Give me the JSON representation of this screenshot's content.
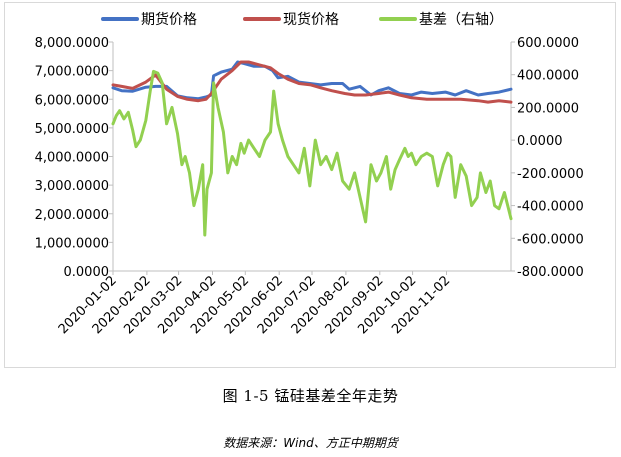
{
  "caption": "图 1-5 锰硅基差全年走势",
  "source": "数据来源：Wind、方正中期期货",
  "chart_data": {
    "type": "line",
    "x_ticks": [
      "2020-01-02",
      "2020-02-02",
      "2020-03-02",
      "2020-04-02",
      "2020-05-02",
      "2020-06-02",
      "2020-07-02",
      "2020-08-02",
      "2020-09-02",
      "2020-10-02",
      "2020-11-02"
    ],
    "x_range": [
      "2020-01-02",
      "2020-12-31"
    ],
    "y_left": {
      "ylim": [
        0,
        8000
      ],
      "ticks": [
        "0.0000",
        "1,000.0000",
        "2,000.0000",
        "3,000.0000",
        "4,000.0000",
        "5,000.0000",
        "6,000.0000",
        "7,000.0000",
        "8,000.0000"
      ]
    },
    "y_right": {
      "ylim": [
        -800,
        600
      ],
      "ticks": [
        "-800.0000",
        "-600.0000",
        "-400.0000",
        "-200.0000",
        "0.0000",
        "200.0000",
        "400.0000",
        "600.0000"
      ]
    },
    "legend_position": "top",
    "grid": false,
    "series": [
      {
        "name": "期货价格",
        "axis": "left",
        "color": "#4472c4",
        "points": [
          [
            "2020-01-02",
            6400
          ],
          [
            "2020-01-10",
            6300
          ],
          [
            "2020-01-20",
            6280
          ],
          [
            "2020-02-01",
            6420
          ],
          [
            "2020-02-10",
            6450
          ],
          [
            "2020-02-20",
            6450
          ],
          [
            "2020-03-01",
            6120
          ],
          [
            "2020-03-10",
            6050
          ],
          [
            "2020-03-20",
            6020
          ],
          [
            "2020-03-27",
            6080
          ],
          [
            "2020-04-01",
            6150
          ],
          [
            "2020-04-03",
            6820
          ],
          [
            "2020-04-10",
            6950
          ],
          [
            "2020-04-20",
            7050
          ],
          [
            "2020-04-25",
            7300
          ],
          [
            "2020-05-01",
            7250
          ],
          [
            "2020-05-10",
            7150
          ],
          [
            "2020-05-20",
            7150
          ],
          [
            "2020-05-27",
            7000
          ],
          [
            "2020-06-01",
            6750
          ],
          [
            "2020-06-10",
            6800
          ],
          [
            "2020-06-20",
            6600
          ],
          [
            "2020-06-30",
            6550
          ],
          [
            "2020-07-10",
            6500
          ],
          [
            "2020-07-20",
            6550
          ],
          [
            "2020-07-30",
            6550
          ],
          [
            "2020-08-05",
            6350
          ],
          [
            "2020-08-15",
            6450
          ],
          [
            "2020-08-25",
            6150
          ],
          [
            "2020-09-01",
            6300
          ],
          [
            "2020-09-10",
            6400
          ],
          [
            "2020-09-20",
            6200
          ],
          [
            "2020-10-01",
            6150
          ],
          [
            "2020-10-10",
            6250
          ],
          [
            "2020-10-20",
            6200
          ],
          [
            "2020-11-01",
            6250
          ],
          [
            "2020-11-10",
            6150
          ],
          [
            "2020-11-20",
            6300
          ],
          [
            "2020-12-01",
            6150
          ],
          [
            "2020-12-10",
            6200
          ],
          [
            "2020-12-20",
            6250
          ],
          [
            "2020-12-31",
            6350
          ]
        ]
      },
      {
        "name": "现货价格",
        "axis": "left",
        "color": "#c0504d",
        "points": [
          [
            "2020-01-02",
            6500
          ],
          [
            "2020-01-10",
            6450
          ],
          [
            "2020-01-20",
            6380
          ],
          [
            "2020-02-01",
            6600
          ],
          [
            "2020-02-10",
            6850
          ],
          [
            "2020-02-20",
            6350
          ],
          [
            "2020-03-01",
            6100
          ],
          [
            "2020-03-10",
            6000
          ],
          [
            "2020-03-20",
            5950
          ],
          [
            "2020-03-27",
            6000
          ],
          [
            "2020-04-01",
            6200
          ],
          [
            "2020-04-10",
            6700
          ],
          [
            "2020-04-20",
            7000
          ],
          [
            "2020-04-28",
            7300
          ],
          [
            "2020-05-05",
            7300
          ],
          [
            "2020-05-15",
            7200
          ],
          [
            "2020-05-25",
            7100
          ],
          [
            "2020-06-01",
            6900
          ],
          [
            "2020-06-10",
            6700
          ],
          [
            "2020-06-20",
            6550
          ],
          [
            "2020-07-01",
            6500
          ],
          [
            "2020-07-10",
            6400
          ],
          [
            "2020-07-20",
            6300
          ],
          [
            "2020-08-01",
            6200
          ],
          [
            "2020-08-10",
            6150
          ],
          [
            "2020-08-20",
            6150
          ],
          [
            "2020-09-01",
            6200
          ],
          [
            "2020-09-10",
            6250
          ],
          [
            "2020-09-20",
            6150
          ],
          [
            "2020-10-01",
            6050
          ],
          [
            "2020-10-15",
            6000
          ],
          [
            "2020-11-01",
            6000
          ],
          [
            "2020-11-15",
            6000
          ],
          [
            "2020-12-01",
            5950
          ],
          [
            "2020-12-10",
            5900
          ],
          [
            "2020-12-20",
            5950
          ],
          [
            "2020-12-31",
            5900
          ]
        ]
      },
      {
        "name": "基差（右轴）",
        "axis": "right",
        "color": "#92d050",
        "points": [
          [
            "2020-01-02",
            100
          ],
          [
            "2020-01-05",
            150
          ],
          [
            "2020-01-08",
            180
          ],
          [
            "2020-01-12",
            130
          ],
          [
            "2020-01-16",
            170
          ],
          [
            "2020-01-20",
            60
          ],
          [
            "2020-01-23",
            -40
          ],
          [
            "2020-01-27",
            0
          ],
          [
            "2020-02-01",
            120
          ],
          [
            "2020-02-05",
            300
          ],
          [
            "2020-02-08",
            420
          ],
          [
            "2020-02-12",
            410
          ],
          [
            "2020-02-16",
            350
          ],
          [
            "2020-02-20",
            100
          ],
          [
            "2020-02-25",
            200
          ],
          [
            "2020-03-01",
            40
          ],
          [
            "2020-03-05",
            -150
          ],
          [
            "2020-03-08",
            -100
          ],
          [
            "2020-03-12",
            -200
          ],
          [
            "2020-03-16",
            -400
          ],
          [
            "2020-03-20",
            -300
          ],
          [
            "2020-03-24",
            -150
          ],
          [
            "2020-03-26",
            -580
          ],
          [
            "2020-03-28",
            -300
          ],
          [
            "2020-04-01",
            -200
          ],
          [
            "2020-04-03",
            350
          ],
          [
            "2020-04-07",
            200
          ],
          [
            "2020-04-12",
            50
          ],
          [
            "2020-04-16",
            -200
          ],
          [
            "2020-04-20",
            -100
          ],
          [
            "2020-04-24",
            -150
          ],
          [
            "2020-04-28",
            -20
          ],
          [
            "2020-05-01",
            -80
          ],
          [
            "2020-05-05",
            0
          ],
          [
            "2020-05-10",
            -50
          ],
          [
            "2020-05-15",
            -100
          ],
          [
            "2020-05-20",
            0
          ],
          [
            "2020-05-25",
            50
          ],
          [
            "2020-05-28",
            300
          ],
          [
            "2020-06-01",
            100
          ],
          [
            "2020-06-05",
            0
          ],
          [
            "2020-06-10",
            -100
          ],
          [
            "2020-06-15",
            -150
          ],
          [
            "2020-06-20",
            -200
          ],
          [
            "2020-06-25",
            -50
          ],
          [
            "2020-06-30",
            -280
          ],
          [
            "2020-07-05",
            0
          ],
          [
            "2020-07-10",
            -150
          ],
          [
            "2020-07-15",
            -100
          ],
          [
            "2020-07-20",
            -180
          ],
          [
            "2020-07-25",
            -80
          ],
          [
            "2020-07-30",
            -250
          ],
          [
            "2020-08-05",
            -300
          ],
          [
            "2020-08-10",
            -200
          ],
          [
            "2020-08-15",
            -350
          ],
          [
            "2020-08-20",
            -500
          ],
          [
            "2020-08-25",
            -150
          ],
          [
            "2020-08-30",
            -250
          ],
          [
            "2020-09-03",
            -200
          ],
          [
            "2020-09-08",
            -100
          ],
          [
            "2020-09-12",
            -300
          ],
          [
            "2020-09-16",
            -180
          ],
          [
            "2020-09-20",
            -120
          ],
          [
            "2020-09-25",
            -50
          ],
          [
            "2020-09-28",
            -100
          ],
          [
            "2020-10-01",
            -80
          ],
          [
            "2020-10-05",
            -150
          ],
          [
            "2020-10-10",
            -100
          ],
          [
            "2020-10-15",
            -80
          ],
          [
            "2020-10-20",
            -100
          ],
          [
            "2020-10-25",
            -280
          ],
          [
            "2020-10-30",
            -150
          ],
          [
            "2020-11-03",
            -80
          ],
          [
            "2020-11-06",
            -100
          ],
          [
            "2020-11-10",
            -350
          ],
          [
            "2020-11-15",
            -150
          ],
          [
            "2020-11-20",
            -220
          ],
          [
            "2020-11-25",
            -400
          ],
          [
            "2020-11-30",
            -350
          ],
          [
            "2020-12-03",
            -200
          ],
          [
            "2020-12-08",
            -320
          ],
          [
            "2020-12-12",
            -250
          ],
          [
            "2020-12-16",
            -400
          ],
          [
            "2020-12-20",
            -420
          ],
          [
            "2020-12-25",
            -320
          ],
          [
            "2020-12-31",
            -480
          ]
        ]
      }
    ]
  }
}
